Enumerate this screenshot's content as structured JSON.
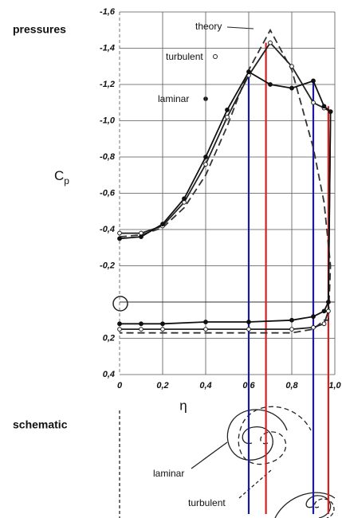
{
  "header": {
    "left_label": "pressures",
    "schematic_label": "schematic"
  },
  "chart_data": {
    "type": "line",
    "ylabel": "C",
    "ylabel_sub": "p",
    "xlabel": "η",
    "xlim": [
      0,
      1.0
    ],
    "ylim": [
      -1.6,
      0.4
    ],
    "xticks": [
      {
        "value": 0,
        "label": "0"
      },
      {
        "value": 0.2,
        "label": "0,2"
      },
      {
        "value": 0.4,
        "label": "0,4"
      },
      {
        "value": 0.6,
        "label": "0,6"
      },
      {
        "value": 0.8,
        "label": "0,8"
      },
      {
        "value": 1.0,
        "label": "1,0"
      }
    ],
    "yticks": [
      {
        "value": -1.6,
        "label": "-1,6"
      },
      {
        "value": -1.4,
        "label": "-1,4"
      },
      {
        "value": -1.2,
        "label": "-1,2"
      },
      {
        "value": -1.0,
        "label": "-1,0"
      },
      {
        "value": -0.8,
        "label": "-0,8"
      },
      {
        "value": -0.6,
        "label": "-0,6"
      },
      {
        "value": -0.4,
        "label": "-0,4"
      },
      {
        "value": -0.2,
        "label": "-0,2"
      },
      {
        "value": 0.2,
        "label": "0,2"
      },
      {
        "value": 0.4,
        "label": "0,4"
      }
    ],
    "grid": true,
    "series": [
      {
        "name": "theory",
        "color": "#333333",
        "dash": true,
        "marker": "none",
        "x": [
          0,
          0.1,
          0.2,
          0.3,
          0.4,
          0.5,
          0.6,
          0.7,
          0.8,
          0.9,
          0.95,
          0.98,
          0.97,
          0.95,
          0.9,
          0.8,
          0.6,
          0.4,
          0.2,
          0
        ],
        "values": [
          -0.36,
          -0.37,
          -0.41,
          -0.52,
          -0.7,
          -0.97,
          -1.28,
          -1.5,
          -1.28,
          -0.85,
          -0.55,
          -0.2,
          0.1,
          0.1,
          0.15,
          0.17,
          0.17,
          0.17,
          0.17,
          0.17
        ]
      },
      {
        "name": "turbulent",
        "color": "#222222",
        "dash": false,
        "marker": "open-circle",
        "x": [
          0,
          0.1,
          0.2,
          0.3,
          0.4,
          0.5,
          0.6,
          0.7,
          0.8,
          0.9,
          0.95,
          0.98,
          0.97,
          0.95,
          0.9,
          0.8,
          0.6,
          0.4,
          0.2,
          0.1,
          0
        ],
        "values": [
          -0.38,
          -0.38,
          -0.42,
          -0.55,
          -0.76,
          -1.02,
          -1.25,
          -1.43,
          -1.3,
          -1.1,
          -1.07,
          -1.05,
          0.05,
          0.12,
          0.14,
          0.15,
          0.15,
          0.15,
          0.15,
          0.15,
          0.15
        ]
      },
      {
        "name": "laminar",
        "color": "#111111",
        "dash": false,
        "marker": "filled-circle",
        "x": [
          0,
          0.1,
          0.2,
          0.3,
          0.4,
          0.5,
          0.6,
          0.7,
          0.8,
          0.9,
          0.95,
          0.98,
          0.97,
          0.95,
          0.9,
          0.8,
          0.6,
          0.4,
          0.2,
          0.1,
          0
        ],
        "values": [
          -0.35,
          -0.36,
          -0.43,
          -0.57,
          -0.8,
          -1.06,
          -1.27,
          -1.2,
          -1.18,
          -1.22,
          -1.08,
          -1.05,
          0.0,
          0.05,
          0.08,
          0.1,
          0.11,
          0.11,
          0.12,
          0.12,
          0.12
        ]
      }
    ],
    "guides": [
      {
        "x": 0.6,
        "y": -1.27,
        "color": "#1a1aa0"
      },
      {
        "x": 0.68,
        "y": -1.43,
        "color": "#d42020"
      },
      {
        "x": 0.9,
        "y": -1.23,
        "color": "#1a1aa0"
      },
      {
        "x": 0.97,
        "y": -1.08,
        "color": "#d42020"
      }
    ],
    "schematic_labels": [
      "laminar",
      "turbulent"
    ]
  }
}
